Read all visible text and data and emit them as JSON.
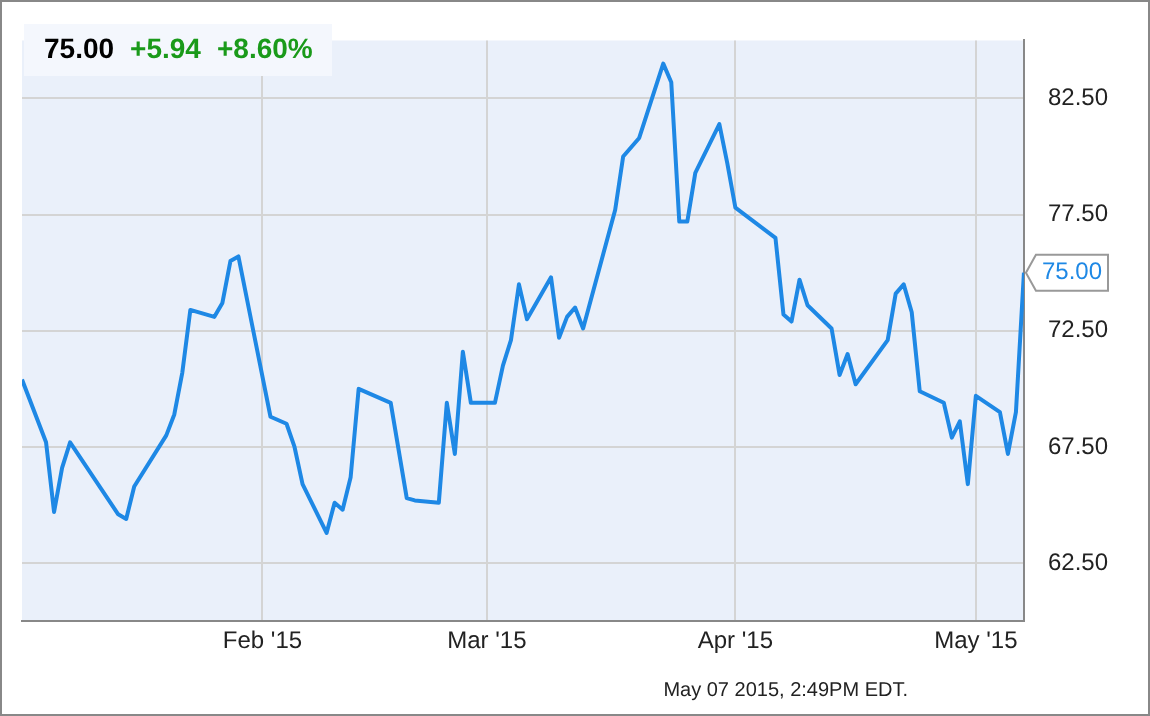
{
  "chart_data": {
    "type": "line",
    "title": "75.00",
    "annotations": [
      "+5.94",
      "+8.60%",
      {
        "text": "75.00",
        "x": "2015-05-07",
        "y": 75
      },
      "May 07 2015, 2:49PM EDT."
    ],
    "x": [
      "2015-01-02",
      "2015-01-05",
      "2015-01-06",
      "2015-01-07",
      "2015-01-08",
      "2015-01-14",
      "2015-01-15",
      "2015-01-16",
      "2015-01-20",
      "2015-01-21",
      "2015-01-22",
      "2015-01-23",
      "2015-01-26",
      "2015-01-27",
      "2015-01-28",
      "2015-01-29",
      "2015-02-02",
      "2015-02-04",
      "2015-02-05",
      "2015-02-06",
      "2015-02-09",
      "2015-02-10",
      "2015-02-11",
      "2015-02-12",
      "2015-02-13",
      "2015-02-17",
      "2015-02-19",
      "2015-02-20",
      "2015-02-23",
      "2015-02-24",
      "2015-02-25",
      "2015-02-26",
      "2015-02-27",
      "2015-03-02",
      "2015-03-03",
      "2015-03-04",
      "2015-03-05",
      "2015-03-06",
      "2015-03-09",
      "2015-03-10",
      "2015-03-11",
      "2015-03-12",
      "2015-03-13",
      "2015-03-17",
      "2015-03-18",
      "2015-03-20",
      "2015-03-23",
      "2015-03-24",
      "2015-03-25",
      "2015-03-26",
      "2015-03-27",
      "2015-03-30",
      "2015-03-31",
      "2015-04-01",
      "2015-04-06",
      "2015-04-07",
      "2015-04-08",
      "2015-04-09",
      "2015-04-10",
      "2015-04-13",
      "2015-04-14",
      "2015-04-15",
      "2015-04-16",
      "2015-04-20",
      "2015-04-21",
      "2015-04-22",
      "2015-04-23",
      "2015-04-24",
      "2015-04-27",
      "2015-04-28",
      "2015-04-29",
      "2015-04-30",
      "2015-05-01",
      "2015-05-04",
      "2015-05-05",
      "2015-05-06",
      "2015-05-07"
    ],
    "series": [
      {
        "color": "#1e88e5",
        "values": [
          70.4,
          67.7,
          64.7,
          66.6,
          67.7,
          64.6,
          64.4,
          65.8,
          68.0,
          68.9,
          70.7,
          73.4,
          73.1,
          73.7,
          75.5,
          75.7,
          68.8,
          68.5,
          67.5,
          65.9,
          63.8,
          65.1,
          64.8,
          66.2,
          70.0,
          69.4,
          65.3,
          65.2,
          65.1,
          69.4,
          67.2,
          71.6,
          69.4,
          69.4,
          71.0,
          72.1,
          74.5,
          73.0,
          74.8,
          72.2,
          73.1,
          73.5,
          72.6,
          77.7,
          80.0,
          80.8,
          84.0,
          83.2,
          77.2,
          77.2,
          79.3,
          81.4,
          79.7,
          77.8,
          76.5,
          73.2,
          72.9,
          74.7,
          73.6,
          72.6,
          70.6,
          71.5,
          70.2,
          72.1,
          74.1,
          74.5,
          73.3,
          69.9,
          69.4,
          67.9,
          68.6,
          65.9,
          69.7,
          69.0,
          67.2,
          69.0,
          75.0
        ]
      }
    ],
    "xlim": [
      "2015-01-02",
      "2015-05-07"
    ],
    "xticks": [
      {
        "value": "2015-02-01",
        "label": "Feb '15"
      },
      {
        "value": "2015-03-01",
        "label": "Mar '15"
      },
      {
        "value": "2015-04-01",
        "label": "Apr '15"
      },
      {
        "value": "2015-05-01",
        "label": "May '15"
      }
    ],
    "ylim": [
      60,
      85
    ],
    "yticks": [
      {
        "value": 62.5,
        "label": "62.50"
      },
      {
        "value": 67.5,
        "label": "67.50"
      },
      {
        "value": 72.5,
        "label": "72.50"
      },
      {
        "value": 77.5,
        "label": "77.50"
      },
      {
        "value": 82.5,
        "label": "82.50"
      }
    ],
    "grid": true,
    "marker": "none",
    "line_style": "solid"
  }
}
